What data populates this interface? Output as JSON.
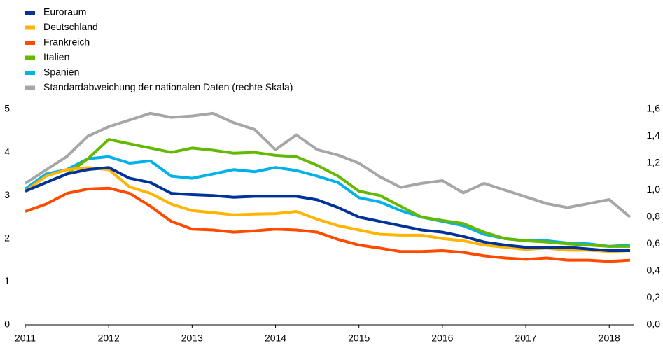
{
  "chart_data": {
    "type": "line",
    "x": [
      2011,
      2011.25,
      2011.5,
      2011.75,
      2012,
      2012.25,
      2012.5,
      2012.75,
      2013,
      2013.25,
      2013.5,
      2013.75,
      2014,
      2014.25,
      2014.5,
      2014.75,
      2015,
      2015.25,
      2015.5,
      2015.75,
      2016,
      2016.25,
      2016.5,
      2016.75,
      2017,
      2017.25,
      2017.5,
      2017.75,
      2018,
      2018.25
    ],
    "series": [
      {
        "name": "Euroraum",
        "color": "#003299",
        "values": [
          3.1,
          3.3,
          3.5,
          3.6,
          3.65,
          3.4,
          3.3,
          3.05,
          3.02,
          3.0,
          2.96,
          2.98,
          2.98,
          2.98,
          2.9,
          2.72,
          2.5,
          2.4,
          2.3,
          2.2,
          2.15,
          2.05,
          1.92,
          1.85,
          1.8,
          1.8,
          1.8,
          1.76,
          1.72,
          1.72
        ]
      },
      {
        "name": "Deutschland",
        "color": "#ffb400",
        "values": [
          3.1,
          3.45,
          3.6,
          3.65,
          3.6,
          3.2,
          3.05,
          2.8,
          2.65,
          2.6,
          2.55,
          2.57,
          2.58,
          2.63,
          2.45,
          2.3,
          2.2,
          2.1,
          2.08,
          2.08,
          2.0,
          1.95,
          1.85,
          1.8,
          1.75,
          1.78,
          1.73,
          1.73,
          1.7,
          1.72
        ]
      },
      {
        "name": "Frankreich",
        "color": "#ff4b00",
        "values": [
          2.63,
          2.8,
          3.05,
          3.15,
          3.17,
          3.05,
          2.75,
          2.4,
          2.22,
          2.2,
          2.15,
          2.18,
          2.22,
          2.2,
          2.15,
          1.98,
          1.85,
          1.78,
          1.7,
          1.7,
          1.72,
          1.68,
          1.6,
          1.55,
          1.52,
          1.55,
          1.5,
          1.5,
          1.47,
          1.5
        ]
      },
      {
        "name": "Italien",
        "color": "#65b800",
        "values": [
          3.1,
          3.3,
          3.5,
          3.85,
          4.3,
          4.2,
          4.1,
          4.0,
          4.1,
          4.05,
          3.98,
          4.0,
          3.93,
          3.9,
          3.7,
          3.45,
          3.1,
          3.0,
          2.75,
          2.5,
          2.42,
          2.35,
          2.15,
          2.0,
          1.95,
          1.92,
          1.88,
          1.85,
          1.82,
          1.82
        ]
      },
      {
        "name": "Spanien",
        "color": "#00b1ea",
        "values": [
          3.15,
          3.5,
          3.6,
          3.85,
          3.9,
          3.75,
          3.8,
          3.45,
          3.4,
          3.5,
          3.6,
          3.55,
          3.65,
          3.58,
          3.45,
          3.3,
          2.95,
          2.85,
          2.65,
          2.5,
          2.4,
          2.3,
          2.1,
          2.0,
          1.95,
          1.95,
          1.9,
          1.88,
          1.82,
          1.85
        ]
      },
      {
        "name": "Standardabweichung der nationalen Daten (rechte Skala)",
        "color": "#a6a6a6",
        "axis": "y2",
        "values": [
          1.05,
          1.15,
          1.25,
          1.4,
          1.47,
          1.52,
          1.57,
          1.54,
          1.55,
          1.57,
          1.5,
          1.45,
          1.3,
          1.41,
          1.3,
          1.26,
          1.2,
          1.1,
          1.02,
          1.05,
          1.07,
          0.98,
          1.05,
          1.0,
          0.95,
          0.9,
          0.87,
          0.9,
          0.93,
          0.8
        ]
      }
    ],
    "xlim": [
      2011,
      2018.3
    ],
    "xticks": [
      2011,
      2012,
      2013,
      2014,
      2015,
      2016,
      2017,
      2018
    ],
    "ylim": [
      0,
      5
    ],
    "yticks": [
      0,
      1,
      2,
      3,
      4,
      5
    ],
    "y2lim": [
      0,
      1.6
    ],
    "y2ticks": [
      {
        "value": 0,
        "label": "0,0"
      },
      {
        "value": 0.2,
        "label": "0,2"
      },
      {
        "value": 0.4,
        "label": "0,4"
      },
      {
        "value": 0.6,
        "label": "0,6"
      },
      {
        "value": 0.8,
        "label": "0,8"
      },
      {
        "value": 1.0,
        "label": "1,0"
      },
      {
        "value": 1.2,
        "label": "1,2"
      },
      {
        "value": 1.4,
        "label": "1,4"
      },
      {
        "value": 1.6,
        "label": "1,6"
      }
    ],
    "legend": "top-left"
  }
}
